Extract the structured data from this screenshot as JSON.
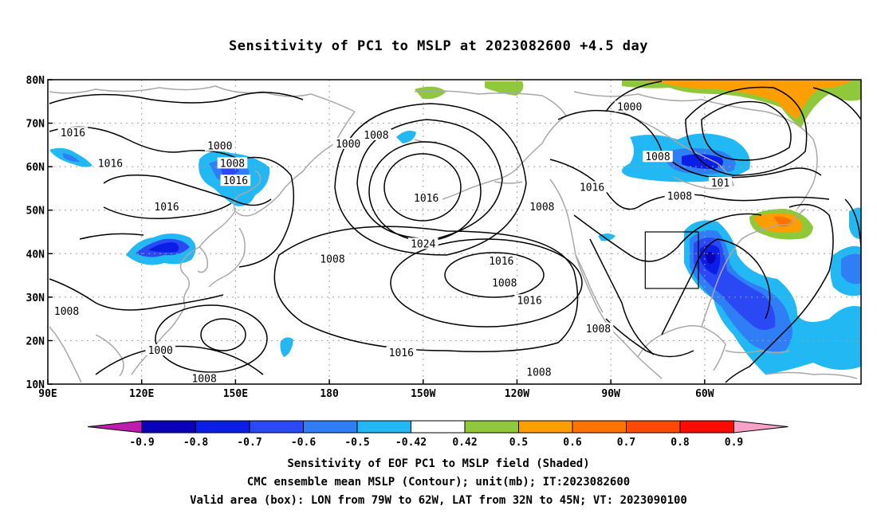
{
  "title": "Sensitivity of PC1 to MSLP at 2023082600 +4.5 day",
  "map": {
    "lat_labels": [
      "80N",
      "70N",
      "60N",
      "50N",
      "40N",
      "30N",
      "20N",
      "10N"
    ],
    "lon_labels": [
      "90E",
      "120E",
      "150E",
      "180",
      "150W",
      "120W",
      "90W",
      "60W"
    ],
    "contour_labels": [
      {
        "text": "1016",
        "lon": 98,
        "lat": 67.5
      },
      {
        "text": "1000",
        "lon": 145,
        "lat": 64.5
      },
      {
        "text": "1008",
        "lon": 149,
        "lat": 60.5
      },
      {
        "text": "1016",
        "lon": 110,
        "lat": 60.5
      },
      {
        "text": "1016",
        "lon": 150,
        "lat": 56.5
      },
      {
        "text": "1016",
        "lon": 128,
        "lat": 50.5
      },
      {
        "text": "1000",
        "lon": -174,
        "lat": 65
      },
      {
        "text": "1008",
        "lon": -165,
        "lat": 67
      },
      {
        "text": "1016",
        "lon": -149,
        "lat": 52.5
      },
      {
        "text": "1024",
        "lon": -150,
        "lat": 42
      },
      {
        "text": "1008",
        "lon": -179,
        "lat": 38.5
      },
      {
        "text": "1016",
        "lon": -125,
        "lat": 38
      },
      {
        "text": "1008",
        "lon": -124,
        "lat": 33
      },
      {
        "text": "1016",
        "lon": -116,
        "lat": 29
      },
      {
        "text": "1008",
        "lon": -112,
        "lat": 50.5
      },
      {
        "text": "1016",
        "lon": -96,
        "lat": 55
      },
      {
        "text": "1008",
        "lon": -94,
        "lat": 22.5
      },
      {
        "text": "1008",
        "lon": -113,
        "lat": 12.5
      },
      {
        "text": "1016",
        "lon": -157,
        "lat": 17
      },
      {
        "text": "1000",
        "lon": -84,
        "lat": 73.5
      },
      {
        "text": "1008",
        "lon": -75,
        "lat": 62
      },
      {
        "text": "1008",
        "lon": -68,
        "lat": 53
      },
      {
        "text": "101",
        "lon": -55,
        "lat": 56
      },
      {
        "text": "1008",
        "lon": 96,
        "lat": 26.5
      },
      {
        "text": "1000",
        "lon": 126,
        "lat": 17.5
      },
      {
        "text": "1008",
        "lon": 140,
        "lat": 11
      }
    ],
    "valid_box": {
      "lon_min": -79,
      "lon_max": -62,
      "lat_min": 32,
      "lat_max": 45
    }
  },
  "colorbar": {
    "labels": [
      "-0.9",
      "-0.8",
      "-0.7",
      "-0.6",
      "-0.5",
      "-0.42",
      "0.42",
      "0.5",
      "0.6",
      "0.7",
      "0.8",
      "0.9"
    ],
    "colors": [
      "#0a00b8",
      "#0b1ee6",
      "#2a48f4",
      "#2f7ef6",
      "#21b8f4",
      "#ffffff",
      "#90c83c",
      "#ff9e00",
      "#ff7400",
      "#ff4a00",
      "#ff0a00"
    ],
    "low_color": "#bf1cae",
    "high_color": "#f7a0c8"
  },
  "footer": {
    "line1": "Sensitivity of EOF PC1 to MSLP field (Shaded)",
    "line2": "CMC ensemble mean MSLP (Contour); unit(mb); IT:2023082600",
    "line3": "Valid area (box): LON from 79W to 62W, LAT from 32N to 45N; VT: 2023090100"
  }
}
